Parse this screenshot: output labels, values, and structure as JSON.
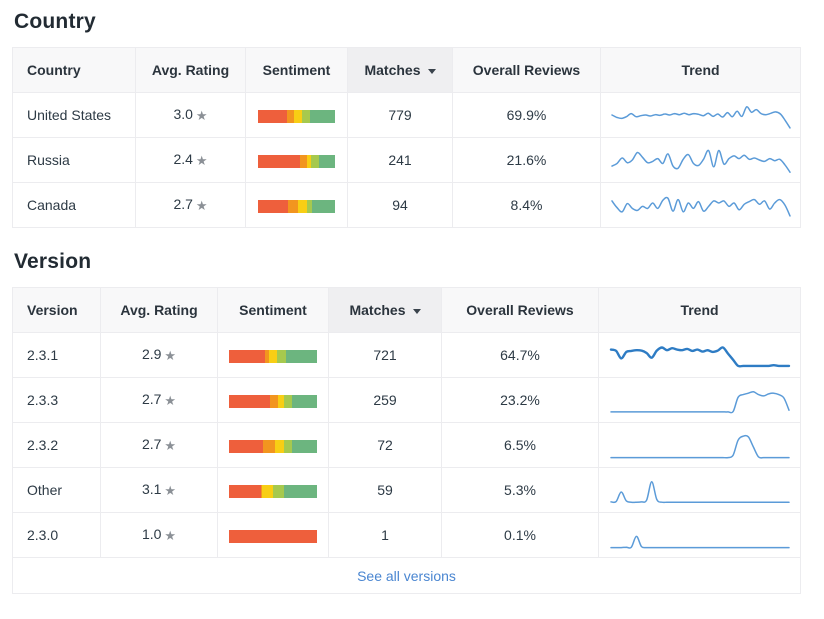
{
  "colors": {
    "sparkline": "#5b9bd8",
    "sparkline_bold": "#2e7cc4",
    "link": "#4a86d1",
    "sentiment_palette": [
      "#ee5f3c",
      "#f2951f",
      "#f8ce14",
      "#a6c94e",
      "#6cb57f"
    ],
    "star": "#8b9096"
  },
  "tables": [
    {
      "title": "Country",
      "columns": [
        {
          "label": "Country",
          "sorted": false
        },
        {
          "label": "Avg. Rating",
          "sorted": false
        },
        {
          "label": "Sentiment",
          "sorted": false
        },
        {
          "label": "Matches",
          "sorted": true
        },
        {
          "label": "Overall Reviews",
          "sorted": false
        },
        {
          "label": "Trend",
          "sorted": false
        }
      ],
      "footer_link": null,
      "rows": [
        {
          "name": "United States",
          "avg_rating": "3.0",
          "sentiment": [
            38,
            9,
            10,
            10,
            33
          ],
          "matches": "779",
          "overall_reviews": "69.9%",
          "trend_bold": false,
          "trend": [
            5.0,
            4.3,
            4.0,
            4.5,
            5.4,
            4.5,
            4.8,
            5.0,
            4.7,
            5.1,
            4.9,
            5.3,
            5.0,
            5.4,
            5.1,
            5.5,
            5.1,
            5.4,
            5.2,
            4.8,
            5.5,
            4.6,
            5.3,
            4.4,
            5.7,
            4.5,
            6.1,
            4.6,
            7.4,
            5.8,
            6.6,
            5.4,
            5.1,
            5.5,
            5.9,
            5.3,
            3.4,
            1.2
          ]
        },
        {
          "name": "Russia",
          "avg_rating": "2.4",
          "sentiment": [
            55,
            9,
            5,
            10,
            21
          ],
          "matches": "241",
          "overall_reviews": "21.6%",
          "trend_bold": false,
          "trend": [
            3.2,
            4.0,
            5.6,
            4.2,
            5.0,
            7.2,
            5.8,
            4.2,
            4.6,
            5.4,
            4.0,
            6.8,
            3.2,
            2.6,
            5.2,
            6.6,
            4.0,
            3.4,
            5.2,
            7.8,
            3.0,
            7.8,
            3.8,
            5.4,
            6.2,
            5.4,
            6.4,
            5.2,
            5.6,
            5.0,
            4.6,
            5.4,
            4.8,
            5.2,
            3.6,
            1.4
          ]
        },
        {
          "name": "Canada",
          "avg_rating": "2.7",
          "sentiment": [
            39,
            13,
            12,
            6,
            30
          ],
          "matches": "94",
          "overall_reviews": "8.4%",
          "trend_bold": false,
          "trend": [
            6.2,
            4.2,
            3.0,
            5.4,
            4.0,
            3.4,
            4.6,
            4.0,
            5.6,
            4.0,
            6.4,
            7.0,
            3.2,
            6.6,
            3.0,
            5.6,
            4.0,
            6.0,
            3.2,
            4.6,
            6.2,
            5.6,
            6.2,
            4.6,
            5.6,
            3.6,
            5.2,
            6.0,
            6.6,
            5.2,
            6.2,
            3.8,
            5.6,
            6.6,
            5.0,
            1.8
          ]
        }
      ]
    },
    {
      "title": "Version",
      "columns": [
        {
          "label": "Version",
          "sorted": false
        },
        {
          "label": "Avg. Rating",
          "sorted": false
        },
        {
          "label": "Sentiment",
          "sorted": false
        },
        {
          "label": "Matches",
          "sorted": true
        },
        {
          "label": "Overall Reviews",
          "sorted": false
        },
        {
          "label": "Trend",
          "sorted": false
        }
      ],
      "footer_link": "See all versions",
      "rows": [
        {
          "name": "2.3.1",
          "avg_rating": "2.9",
          "sentiment": [
            41,
            5,
            8,
            11,
            35
          ],
          "matches": "721",
          "overall_reviews": "64.7%",
          "trend_bold": true,
          "trend": [
            6.6,
            6.2,
            4.0,
            5.9,
            6.2,
            6.4,
            6.3,
            5.6,
            4.2,
            6.3,
            7.2,
            6.4,
            7.0,
            6.6,
            6.4,
            6.8,
            6.2,
            6.6,
            6.0,
            6.4,
            5.9,
            6.3,
            7.2,
            5.4,
            3.6,
            1.8,
            1.8,
            1.8,
            1.8,
            1.8,
            1.8,
            1.8,
            2.0,
            1.8,
            1.8,
            1.8
          ]
        },
        {
          "name": "2.3.3",
          "avg_rating": "2.7",
          "sentiment": [
            47,
            9,
            7,
            9,
            28
          ],
          "matches": "259",
          "overall_reviews": "23.2%",
          "trend_bold": false,
          "trend": [
            1.5,
            1.5,
            1.5,
            1.5,
            1.5,
            1.5,
            1.5,
            1.5,
            1.5,
            1.5,
            1.5,
            1.5,
            1.5,
            1.5,
            1.5,
            1.5,
            1.5,
            1.5,
            1.5,
            1.5,
            1.5,
            1.5,
            1.5,
            1.5,
            1.6,
            5.8,
            6.6,
            7.0,
            7.4,
            6.6,
            6.2,
            6.8,
            7.0,
            6.6,
            5.6,
            2.0
          ]
        },
        {
          "name": "2.3.2",
          "avg_rating": "2.7",
          "sentiment": [
            39,
            13,
            11,
            9,
            28
          ],
          "matches": "72",
          "overall_reviews": "6.5%",
          "trend_bold": false,
          "trend": [
            1.3,
            1.3,
            1.3,
            1.3,
            1.3,
            1.3,
            1.3,
            1.3,
            1.3,
            1.3,
            1.3,
            1.3,
            1.3,
            1.3,
            1.3,
            1.3,
            1.3,
            1.3,
            1.3,
            1.3,
            1.3,
            1.3,
            1.3,
            1.3,
            2.0,
            6.4,
            7.6,
            7.4,
            4.4,
            1.5,
            1.3,
            1.3,
            1.3,
            1.3,
            1.3,
            1.3
          ]
        },
        {
          "name": "Other",
          "avg_rating": "3.1",
          "sentiment": [
            36,
            2,
            12,
            13,
            37
          ],
          "matches": "59",
          "overall_reviews": "5.3%",
          "trend_bold": false,
          "trend": [
            1.5,
            1.6,
            4.4,
            1.8,
            1.4,
            1.4,
            1.5,
            2.0,
            7.4,
            2.2,
            1.4,
            1.4,
            1.4,
            1.4,
            1.4,
            1.4,
            1.4,
            1.4,
            1.4,
            1.4,
            1.4,
            1.4,
            1.4,
            1.4,
            1.4,
            1.4,
            1.4,
            1.4,
            1.4,
            1.4,
            1.4,
            1.4,
            1.4,
            1.4,
            1.4,
            1.4
          ]
        },
        {
          "name": "2.3.0",
          "avg_rating": "1.0",
          "sentiment": [
            100,
            0,
            0,
            0,
            0
          ],
          "matches": "1",
          "overall_reviews": "0.1%",
          "trend_bold": false,
          "trend": [
            1.3,
            1.3,
            1.3,
            1.4,
            1.4,
            4.6,
            1.6,
            1.3,
            1.3,
            1.3,
            1.3,
            1.3,
            1.3,
            1.3,
            1.3,
            1.3,
            1.3,
            1.3,
            1.3,
            1.3,
            1.3,
            1.3,
            1.3,
            1.3,
            1.3,
            1.3,
            1.3,
            1.3,
            1.3,
            1.3,
            1.3,
            1.3,
            1.3,
            1.3,
            1.3,
            1.3
          ]
        }
      ]
    }
  ]
}
